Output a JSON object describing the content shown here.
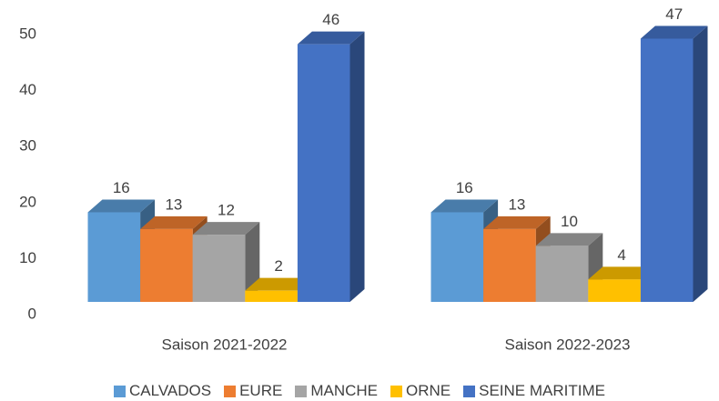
{
  "chart_data": {
    "type": "bar3d",
    "categories": [
      "Saison 2021-2022",
      "Saison 2022-2023"
    ],
    "series": [
      {
        "name": "CALVADOS",
        "color": "#5b9bd5",
        "values": [
          16,
          16
        ]
      },
      {
        "name": "EURE",
        "color": "#ed7d31",
        "values": [
          13,
          13
        ]
      },
      {
        "name": "MANCHE",
        "color": "#a5a5a5",
        "values": [
          12,
          10
        ]
      },
      {
        "name": "ORNE",
        "color": "#ffc000",
        "values": [
          2,
          4
        ]
      },
      {
        "name": "SEINE MARITIME",
        "color": "#4472c4",
        "values": [
          46,
          47
        ]
      }
    ],
    "ylim": [
      0,
      50
    ],
    "yticks": [
      0,
      10,
      20,
      30,
      40,
      50
    ],
    "grid": false,
    "legend": "bottom"
  }
}
